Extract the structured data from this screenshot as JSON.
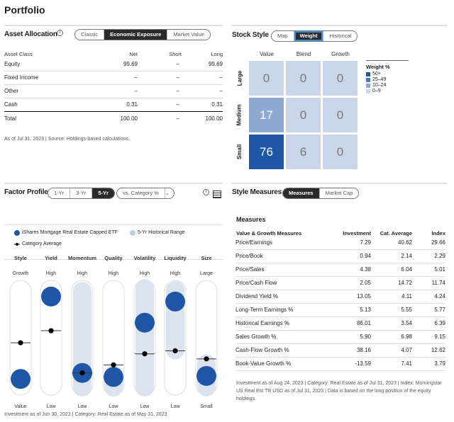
{
  "page": {
    "title": "Portfolio"
  },
  "asset_allocation": {
    "title": "Asset Allocation",
    "tabs": [
      {
        "label": "Classic",
        "active": false
      },
      {
        "label": "Economic Exposure",
        "active": true
      },
      {
        "label": "Market Value",
        "active": false
      }
    ],
    "headers": [
      "Asset Class",
      "Net",
      "Short",
      "Long"
    ],
    "rows": [
      {
        "name": "Equity",
        "net": "99.69",
        "short": "–",
        "long": "99.69"
      },
      {
        "name": "Fixed Income",
        "net": "–",
        "short": "–",
        "long": "–"
      },
      {
        "name": "Other",
        "net": "–",
        "short": "–",
        "long": "–"
      },
      {
        "name": "Cash",
        "net": "0.31",
        "short": "–",
        "long": "0.31"
      }
    ],
    "total": {
      "name": "Total",
      "net": "100.00",
      "short": "–",
      "long": "100.00"
    },
    "note": "As of Jul 31, 2023 | Source: Holdings-based calculations."
  },
  "stock_style": {
    "title": "Stock Style",
    "tabs": [
      {
        "label": "Map",
        "active": false
      },
      {
        "label": "Weight",
        "active": true
      },
      {
        "label": "Historical",
        "active": false
      }
    ],
    "columns": [
      "Value",
      "Blend",
      "Growth"
    ],
    "rows": [
      "Large",
      "Medium",
      "Small"
    ],
    "weights": [
      [
        "0",
        "0",
        "0"
      ],
      [
        "17",
        "0",
        "0"
      ],
      [
        "76",
        "6",
        "0"
      ]
    ],
    "legend_title": "Weight %",
    "legend": [
      {
        "label": "50+",
        "color": "#1f56a6"
      },
      {
        "label": "25–49",
        "color": "#4f77b8"
      },
      {
        "label": "10–24",
        "color": "#8fa9d2"
      },
      {
        "label": "0–9",
        "color": "#c9d6e8"
      }
    ]
  },
  "factor_profile": {
    "title": "Factor Profile",
    "tabs": [
      {
        "label": "1-Yr",
        "active": false
      },
      {
        "label": "3-Yr",
        "active": false
      },
      {
        "label": "5-Yr",
        "active": true
      }
    ],
    "dropdown": "vs. Category %",
    "legend": {
      "fund": "iShares Mortgage Real Estate Capped ETF",
      "range": "5-Yr Historical Range",
      "category": "Category Average"
    },
    "colors": {
      "fund": "#1f56a6",
      "range": "#dbe3ef",
      "category": "#000000"
    },
    "factors": [
      {
        "name": "Style",
        "high": "Growth",
        "low": "Value",
        "fund": 9,
        "category": 45,
        "range": null
      },
      {
        "name": "Yield",
        "high": "High",
        "low": "Low",
        "fund": 91,
        "category": 57,
        "range": null
      },
      {
        "name": "Momentum",
        "high": "High",
        "low": "Low",
        "fund": 15,
        "category": 15,
        "range": [
          0,
          97
        ]
      },
      {
        "name": "Quality",
        "high": "High",
        "low": "Low",
        "fund": 11,
        "category": 23,
        "range": [
          0,
          14
        ]
      },
      {
        "name": "Volatility",
        "high": "High",
        "low": "Low",
        "fund": 65,
        "category": 34,
        "range": [
          0,
          100
        ]
      },
      {
        "name": "Liquidity",
        "high": "High",
        "low": "Low",
        "fund": 86,
        "category": 37,
        "range": [
          37,
          98
        ]
      },
      {
        "name": "Size",
        "high": "Large",
        "low": "Small",
        "fund": 12,
        "category": 29,
        "range": [
          0,
          25
        ]
      }
    ],
    "note": "Investment as of Jun 30, 2023 | Category: Real Estate as of May 31, 2023"
  },
  "style_measures": {
    "title": "Style Measures",
    "tabs": [
      {
        "label": "Measures",
        "active": true
      },
      {
        "label": "Market Cap",
        "active": false
      }
    ],
    "subtitle": "Measures",
    "headers": [
      "Value & Growth Measures",
      "Investment",
      "Cat. Average",
      "Index"
    ],
    "rows": [
      [
        "Price/Earnings",
        "7.29",
        "40.62",
        "29.66"
      ],
      [
        "Price/Book",
        "0.94",
        "2.14",
        "2.29"
      ],
      [
        "Price/Sales",
        "4.38",
        "6.04",
        "5.01"
      ],
      [
        "Price/Cash Flow",
        "2.05",
        "14.72",
        "11.74"
      ],
      [
        "Dividend Yield %",
        "13.05",
        "4.11",
        "4.24"
      ],
      [
        "Long-Term Earnings %",
        "5.13",
        "5.55",
        "5.77"
      ],
      [
        "Historical Earnings %",
        "86.01",
        "3.54",
        "6.39"
      ],
      [
        "Sales Growth %",
        "5.90",
        "6.98",
        "9.15"
      ],
      [
        "Cash-Flow Growth %",
        "38.16",
        "4.07",
        "12.62"
      ],
      [
        "Book-Value Growth %",
        "-13.59",
        "7.41",
        "3.79"
      ]
    ],
    "note": "Investment as of Aug 24, 2023 | Category: Real Estate as of Jul 31, 2023 | Index: Morningstar US Real Est TR USD as of Jul 31, 2023 | Data is based on the long position of the equity holdings."
  }
}
